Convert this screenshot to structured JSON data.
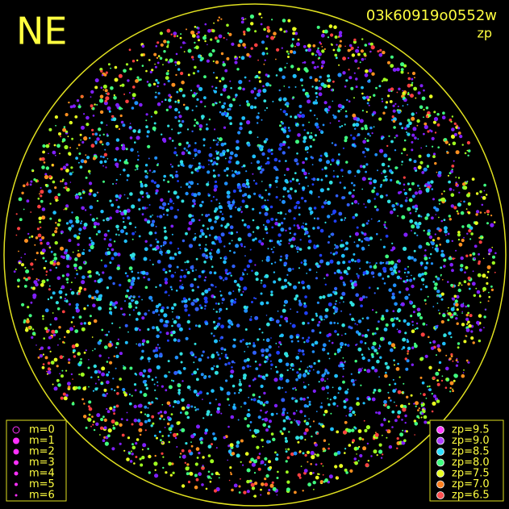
{
  "header": {
    "direction": "NE",
    "image_id": "03k60919o0552w",
    "mode": "zp"
  },
  "magnitude_legend": {
    "labels": [
      "m=0",
      "m=1",
      "m=2",
      "m=3",
      "m=4",
      "m=5",
      "m=6"
    ]
  },
  "zp_legend": {
    "items": [
      {
        "label": "zp=9.5",
        "color": "#ff40ff"
      },
      {
        "label": "zp=9.0",
        "color": "#b040ff"
      },
      {
        "label": "zp=8.5",
        "color": "#30e0ff"
      },
      {
        "label": "zp=8.0",
        "color": "#40ff80"
      },
      {
        "label": "zp=7.5",
        "color": "#e8ff20"
      },
      {
        "label": "zp=7.0",
        "color": "#ff8020"
      },
      {
        "label": "zp=6.5",
        "color": "#ff5050"
      }
    ]
  }
}
